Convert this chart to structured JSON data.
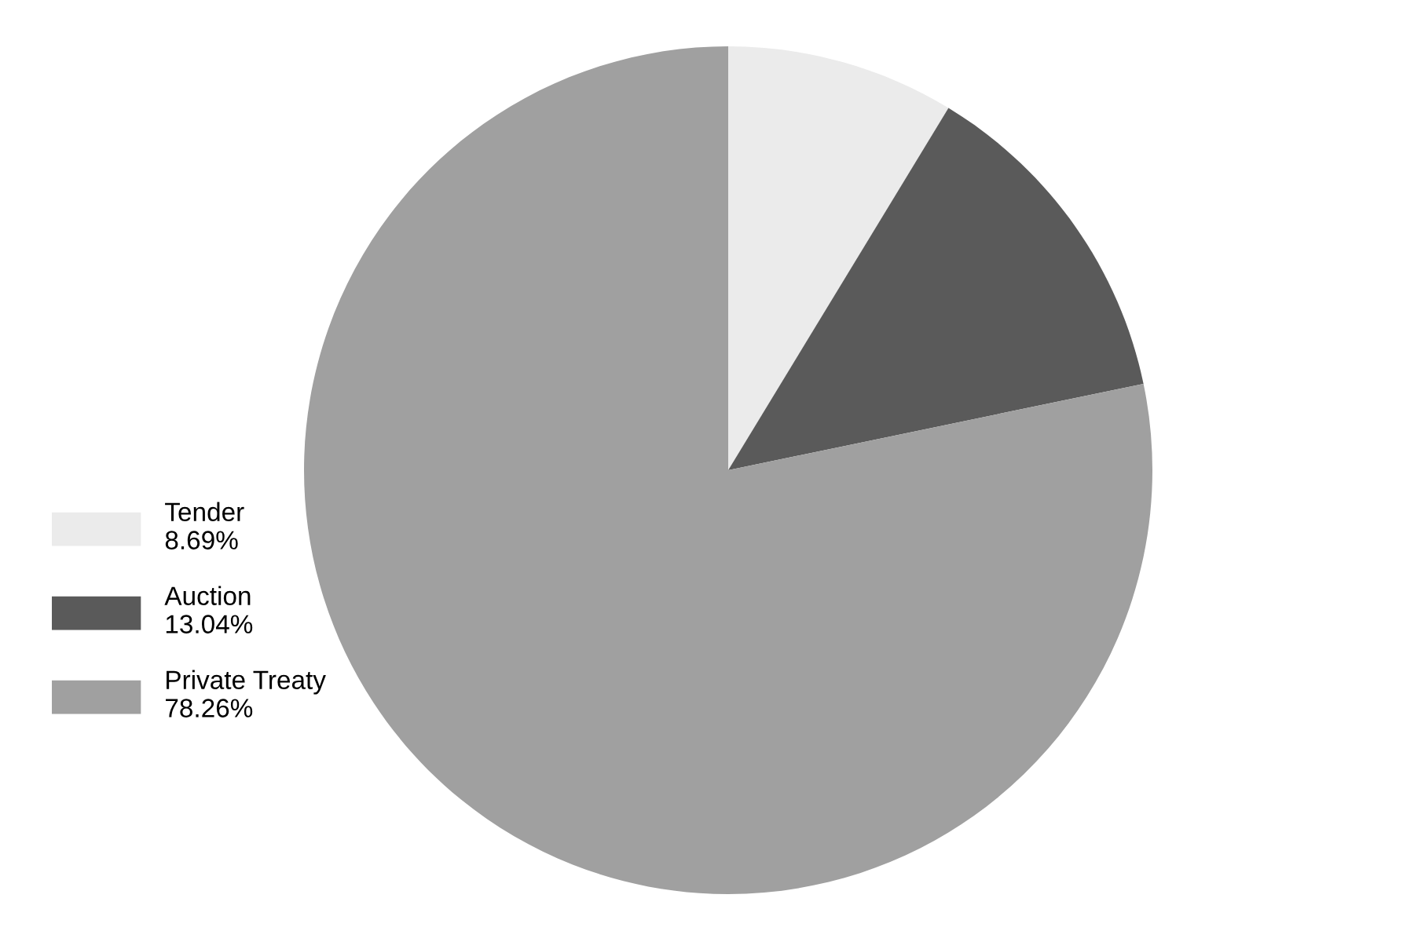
{
  "chart_data": {
    "type": "pie",
    "categories": [
      "Tender",
      "Auction",
      "Private Treaty"
    ],
    "values": [
      8.69,
      13.04,
      78.26
    ],
    "value_labels": [
      "8.69%",
      "13.04%",
      "78.26%"
    ],
    "colors": [
      "#ebebeb",
      "#5a5a5a",
      "#a0a0a0"
    ],
    "legend": "left"
  }
}
